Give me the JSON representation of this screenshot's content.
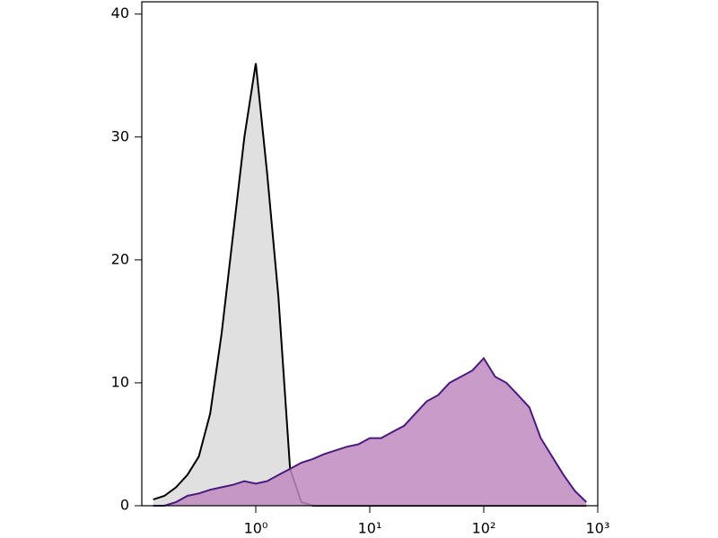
{
  "chart_data": {
    "type": "histogram-overlay",
    "xscale": "log",
    "xlim": [
      0.1,
      1000
    ],
    "ylim": [
      0,
      41
    ],
    "xticks": [
      {
        "value": 1,
        "label": "10⁰"
      },
      {
        "value": 10,
        "label": "10¹"
      },
      {
        "value": 100,
        "label": "10²"
      },
      {
        "value": 1000,
        "label": "10³"
      }
    ],
    "yticks": [
      0,
      10,
      20,
      30,
      40
    ],
    "x": [
      0.126,
      0.158,
      0.2,
      0.251,
      0.316,
      0.398,
      0.501,
      0.631,
      0.794,
      1,
      1.26,
      1.58,
      2,
      2.51,
      3.16,
      3.98,
      5.01,
      6.31,
      7.94,
      10,
      12.6,
      15.8,
      20,
      25.1,
      31.6,
      39.8,
      50.1,
      63.1,
      79.4,
      100,
      126,
      158,
      200,
      251,
      316,
      398,
      501,
      631,
      794
    ],
    "series": [
      {
        "color": "#000000",
        "fill": "#e0e0e0",
        "values": [
          0.5,
          0.8,
          1.5,
          2.5,
          4,
          7.5,
          14,
          22,
          30,
          36,
          27,
          17,
          3,
          0.3,
          0,
          0,
          0,
          0,
          0,
          0,
          0,
          0,
          0,
          0,
          0,
          0,
          0,
          0,
          0,
          0,
          0,
          0,
          0,
          0,
          0,
          0,
          0,
          0,
          0
        ]
      },
      {
        "color": "#4b1a7e",
        "fill": "#c08ac0",
        "values": [
          0,
          0,
          0.3,
          0.8,
          1,
          1.3,
          1.5,
          1.7,
          2,
          1.8,
          2,
          2.5,
          3,
          3.5,
          3.8,
          4.2,
          4.5,
          4.8,
          5,
          5.5,
          5.5,
          6,
          6.5,
          7.5,
          8.5,
          9,
          10,
          10.5,
          11,
          12,
          10.5,
          10,
          9,
          8,
          5.5,
          4,
          2.5,
          1.2,
          0.3
        ]
      }
    ]
  }
}
